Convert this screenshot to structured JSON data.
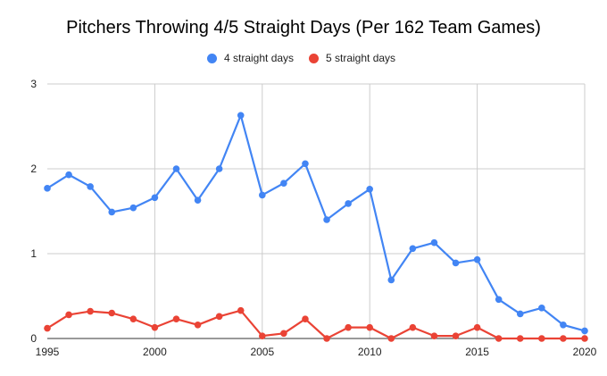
{
  "chart_data": {
    "type": "line",
    "title": "Pitchers Throwing 4/5 Straight Days (Per 162 Team Games)",
    "xlabel": "",
    "ylabel": "",
    "xlim": [
      1995,
      2020
    ],
    "ylim": [
      0,
      3
    ],
    "x_ticks": [
      "1995",
      "2000",
      "2005",
      "2010",
      "2015",
      "2020"
    ],
    "y_ticks": [
      "0",
      "1",
      "2",
      "3"
    ],
    "grid": true,
    "legend_position": "top",
    "x": [
      1995,
      1996,
      1997,
      1998,
      1999,
      2000,
      2001,
      2002,
      2003,
      2004,
      2005,
      2006,
      2007,
      2008,
      2009,
      2010,
      2011,
      2012,
      2013,
      2014,
      2015,
      2016,
      2017,
      2018,
      2019,
      2020
    ],
    "series": [
      {
        "name": "4 straight days",
        "color": "#4285f4",
        "values": [
          1.77,
          1.93,
          1.79,
          1.49,
          1.54,
          1.66,
          2.0,
          1.63,
          2.0,
          2.63,
          1.69,
          1.83,
          2.06,
          1.4,
          1.59,
          1.76,
          0.69,
          1.06,
          1.13,
          0.89,
          0.93,
          0.46,
          0.29,
          0.36,
          0.16,
          0.09
        ]
      },
      {
        "name": "5 straight days",
        "color": "#ea4335",
        "values": [
          0.12,
          0.28,
          0.32,
          0.3,
          0.23,
          0.13,
          0.23,
          0.16,
          0.26,
          0.33,
          0.03,
          0.06,
          0.23,
          0,
          0.13,
          0.13,
          0,
          0.13,
          0.03,
          0.03,
          0.13,
          0,
          0,
          0,
          0,
          0
        ]
      }
    ]
  }
}
